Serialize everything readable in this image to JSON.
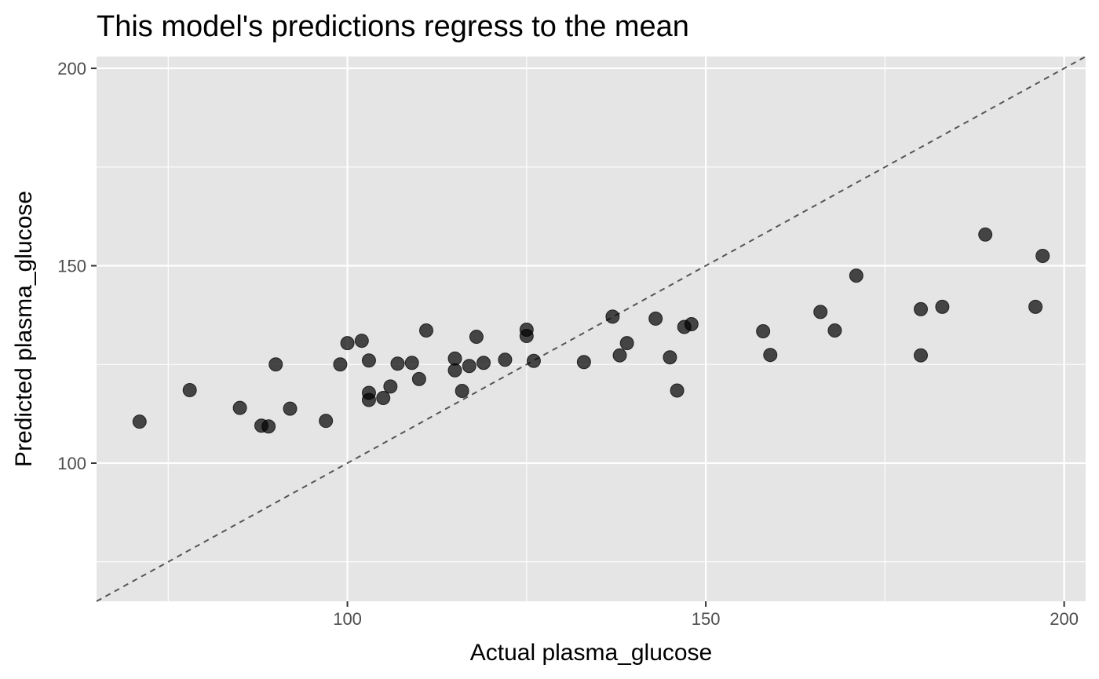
{
  "chart_data": {
    "type": "scatter",
    "title": "This model's predictions regress to the mean",
    "xlabel": "Actual  plasma_glucose",
    "ylabel": "Predicted  plasma_glucose",
    "xlim": [
      65,
      203
    ],
    "ylim": [
      65,
      203
    ],
    "x_ticks": [
      100,
      150,
      200
    ],
    "y_ticks": [
      100,
      150,
      200
    ],
    "x_tick_labels": [
      "100",
      "150",
      "200"
    ],
    "y_tick_labels": [
      "100",
      "150",
      "200"
    ],
    "grid": true,
    "reference_line": {
      "type": "identity",
      "style": "dashed"
    },
    "colors": {
      "panel_background": "#e5e5e5",
      "grid": "#ffffff",
      "point": "#000000",
      "reference_line": "#555555",
      "tick": "#333333"
    },
    "points": [
      {
        "x": 71,
        "y": 110.5
      },
      {
        "x": 78,
        "y": 118.5
      },
      {
        "x": 85,
        "y": 114
      },
      {
        "x": 88,
        "y": 109.5
      },
      {
        "x": 89,
        "y": 109.3
      },
      {
        "x": 90,
        "y": 125
      },
      {
        "x": 92,
        "y": 113.8
      },
      {
        "x": 97,
        "y": 110.7
      },
      {
        "x": 99,
        "y": 125
      },
      {
        "x": 100,
        "y": 130.4
      },
      {
        "x": 102,
        "y": 131
      },
      {
        "x": 103,
        "y": 126
      },
      {
        "x": 103,
        "y": 117.8
      },
      {
        "x": 103,
        "y": 116
      },
      {
        "x": 105,
        "y": 116.5
      },
      {
        "x": 106,
        "y": 119.4
      },
      {
        "x": 107,
        "y": 125.2
      },
      {
        "x": 109,
        "y": 125.4
      },
      {
        "x": 110,
        "y": 121.3
      },
      {
        "x": 111,
        "y": 133.6
      },
      {
        "x": 115,
        "y": 126.5
      },
      {
        "x": 115,
        "y": 123.5
      },
      {
        "x": 116,
        "y": 118.3
      },
      {
        "x": 117,
        "y": 124.6
      },
      {
        "x": 118,
        "y": 132
      },
      {
        "x": 119,
        "y": 125.4
      },
      {
        "x": 122,
        "y": 126.2
      },
      {
        "x": 125,
        "y": 133.8
      },
      {
        "x": 125,
        "y": 132.2
      },
      {
        "x": 126,
        "y": 125.9
      },
      {
        "x": 133,
        "y": 125.6
      },
      {
        "x": 137,
        "y": 137.1
      },
      {
        "x": 138,
        "y": 127.3
      },
      {
        "x": 139,
        "y": 130.4
      },
      {
        "x": 143,
        "y": 136.6
      },
      {
        "x": 145,
        "y": 126.8
      },
      {
        "x": 146,
        "y": 118.4
      },
      {
        "x": 147,
        "y": 134.5
      },
      {
        "x": 148,
        "y": 135.2
      },
      {
        "x": 158,
        "y": 133.4
      },
      {
        "x": 159,
        "y": 127.4
      },
      {
        "x": 166,
        "y": 138.3
      },
      {
        "x": 168,
        "y": 133.6
      },
      {
        "x": 171,
        "y": 147.5
      },
      {
        "x": 180,
        "y": 139
      },
      {
        "x": 180,
        "y": 127.3
      },
      {
        "x": 183,
        "y": 139.6
      },
      {
        "x": 189,
        "y": 157.9
      },
      {
        "x": 196,
        "y": 139.6
      },
      {
        "x": 197,
        "y": 152.5
      }
    ]
  }
}
